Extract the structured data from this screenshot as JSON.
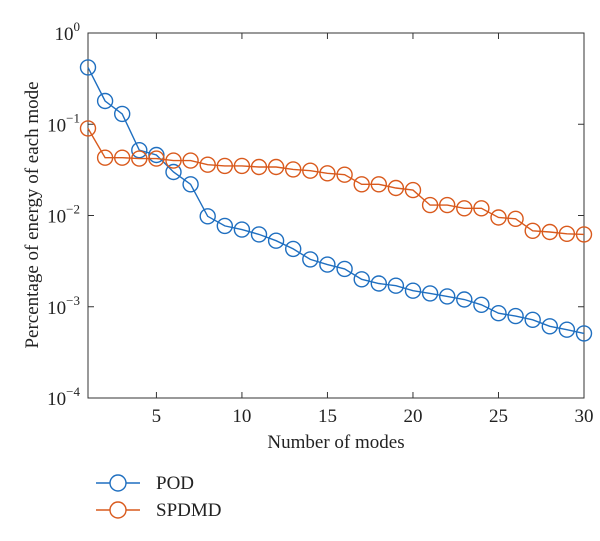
{
  "chart_data": {
    "type": "line",
    "xlabel": "Number of modes",
    "ylabel": "Percentage of energy of each mode",
    "xlim": [
      1,
      30
    ],
    "ylim": [
      0.0001,
      1
    ],
    "yscale": "log",
    "x_ticks": [
      5,
      10,
      15,
      20,
      25,
      30
    ],
    "x_tick_labels": [
      "5",
      "10",
      "15",
      "20",
      "25",
      "30"
    ],
    "y_ticks": [
      0.0001,
      0.001,
      0.01,
      0.1,
      1
    ],
    "y_tick_labels": [
      {
        "base": "10",
        "exp": "−4"
      },
      {
        "base": "10",
        "exp": "−3"
      },
      {
        "base": "10",
        "exp": "−2"
      },
      {
        "base": "10",
        "exp": "−1"
      },
      {
        "base": "10",
        "exp": "0"
      }
    ],
    "grid": false,
    "legend_position": "bottom-left, below plot",
    "x": [
      1,
      2,
      3,
      4,
      5,
      6,
      7,
      8,
      9,
      10,
      11,
      12,
      13,
      14,
      15,
      16,
      17,
      18,
      19,
      20,
      21,
      22,
      23,
      24,
      25,
      26,
      27,
      28,
      29,
      30
    ],
    "series": [
      {
        "name": "POD",
        "color": "#1f6fc0",
        "marker": "circle",
        "values": [
          0.42,
          0.18,
          0.13,
          0.052,
          0.046,
          0.03,
          0.022,
          0.0098,
          0.0077,
          0.007,
          0.0062,
          0.0053,
          0.0043,
          0.0033,
          0.0029,
          0.0026,
          0.002,
          0.0018,
          0.0017,
          0.0015,
          0.0014,
          0.0013,
          0.0012,
          0.00105,
          0.00085,
          0.00079,
          0.00072,
          0.00061,
          0.00056,
          0.00051
        ]
      },
      {
        "name": "SPDMD",
        "color": "#d95a1d",
        "marker": "circle",
        "values": [
          0.09,
          0.043,
          0.043,
          0.042,
          0.042,
          0.04,
          0.04,
          0.036,
          0.035,
          0.035,
          0.034,
          0.034,
          0.032,
          0.031,
          0.029,
          0.028,
          0.022,
          0.022,
          0.02,
          0.019,
          0.013,
          0.013,
          0.012,
          0.012,
          0.0095,
          0.0092,
          0.0068,
          0.0066,
          0.0063,
          0.0062
        ]
      }
    ]
  }
}
